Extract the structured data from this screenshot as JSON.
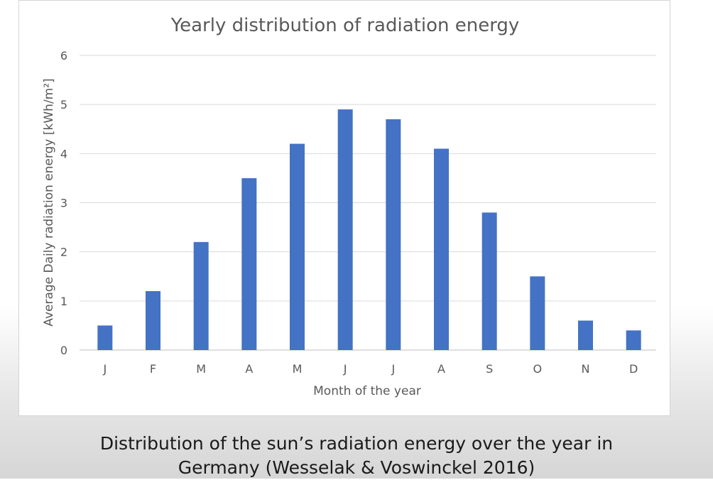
{
  "chart_data": {
    "type": "bar",
    "title": "Yearly distribution of radiation energy",
    "xlabel": "Month of the year",
    "ylabel": "Average Daily radiation energy [kWh/m²]",
    "categories": [
      "J",
      "F",
      "M",
      "A",
      "M",
      "J",
      "J",
      "A",
      "S",
      "O",
      "N",
      "D"
    ],
    "values": [
      0.5,
      1.2,
      2.2,
      3.5,
      4.2,
      4.9,
      4.7,
      4.1,
      2.8,
      1.5,
      0.6,
      0.4
    ],
    "ylim": [
      0,
      6
    ],
    "yticks": [
      "0",
      "1",
      "2",
      "3",
      "4",
      "5",
      "6"
    ],
    "grid": true,
    "legend": "none",
    "bar_color": "#4472c4"
  },
  "caption": {
    "line1": "Distribution of the sun’s radiation energy over the year in",
    "line2": "Germany (Wesselak & Voswinckel 2016)"
  }
}
